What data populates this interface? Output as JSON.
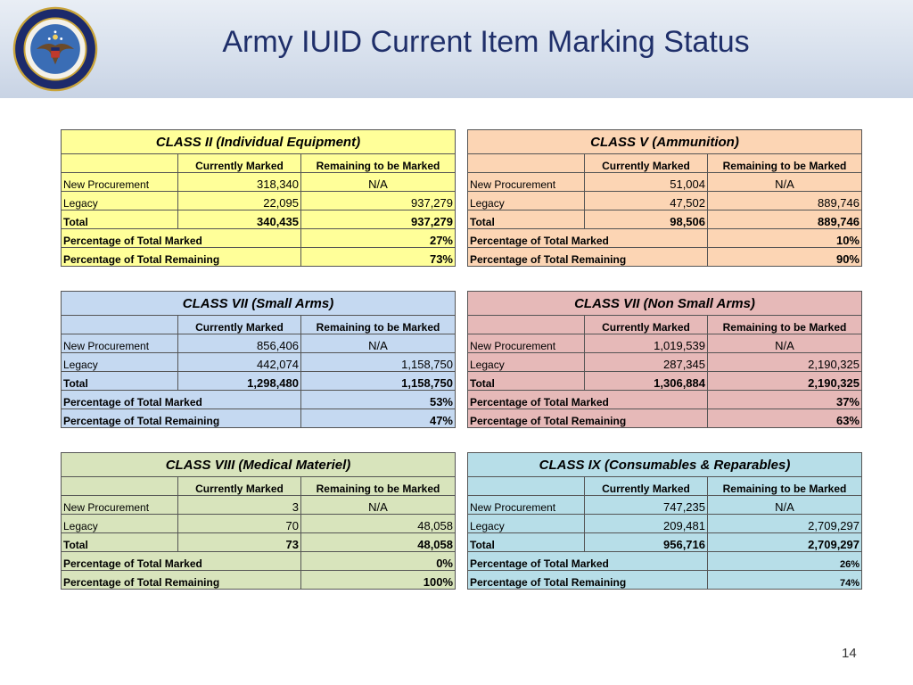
{
  "slide": {
    "title": "Army IUID Current Item Marking Status",
    "page_number": "14",
    "colors": {
      "title": "#1f2f6a",
      "header_bg": "#d6dfec"
    }
  },
  "columns": {
    "marked": "Currently Marked",
    "remaining": "Remaining to be Marked"
  },
  "row_labels": {
    "new": "New Procurement",
    "legacy": "Legacy",
    "total": "Total",
    "pct_marked": "Percentage of Total Marked",
    "pct_remaining": "Percentage of Total Remaining"
  },
  "tables": [
    {
      "title": "CLASS II (Individual Equipment)",
      "color": "#ffff99",
      "new": {
        "marked": "318,340",
        "remaining": "N/A"
      },
      "legacy": {
        "marked": "22,095",
        "remaining": "937,279"
      },
      "total": {
        "marked": "340,435",
        "remaining": "937,279"
      },
      "pct_marked": "27%",
      "pct_remaining": "73%"
    },
    {
      "title": "CLASS V (Ammunition)",
      "color": "#fcd5b4",
      "new": {
        "marked": "51,004",
        "remaining": "N/A"
      },
      "legacy": {
        "marked": "47,502",
        "remaining": "889,746"
      },
      "total": {
        "marked": "98,506",
        "remaining": "889,746"
      },
      "pct_marked": "10%",
      "pct_remaining": "90%"
    },
    {
      "title": "CLASS VII (Small Arms)",
      "color": "#c5d9f1",
      "new": {
        "marked": "856,406",
        "remaining": "N/A"
      },
      "legacy": {
        "marked": "442,074",
        "remaining": "1,158,750"
      },
      "total": {
        "marked": "1,298,480",
        "remaining": "1,158,750"
      },
      "pct_marked": "53%",
      "pct_remaining": "47%"
    },
    {
      "title": "CLASS VII (Non Small Arms)",
      "color": "#e6b9b8",
      "new": {
        "marked": "1,019,539",
        "remaining": "N/A"
      },
      "legacy": {
        "marked": "287,345",
        "remaining": "2,190,325"
      },
      "total": {
        "marked": "1,306,884",
        "remaining": "2,190,325"
      },
      "pct_marked": "37%",
      "pct_remaining": "63%"
    },
    {
      "title": "CLASS VIII (Medical Materiel)",
      "color": "#d8e4bc",
      "new": {
        "marked": "3",
        "remaining": "N/A"
      },
      "legacy": {
        "marked": "70",
        "remaining": "48,058"
      },
      "total": {
        "marked": "73",
        "remaining": "48,058"
      },
      "pct_marked": "0%",
      "pct_remaining": "100%"
    },
    {
      "title": "CLASS IX (Consumables & Reparables)",
      "color": "#b7dee8",
      "new": {
        "marked": "747,235",
        "remaining": "N/A"
      },
      "legacy": {
        "marked": "209,481",
        "remaining": "2,709,297"
      },
      "total": {
        "marked": "956,716",
        "remaining": "2,709,297"
      },
      "pct_marked": "26%",
      "pct_remaining": "74%"
    }
  ]
}
